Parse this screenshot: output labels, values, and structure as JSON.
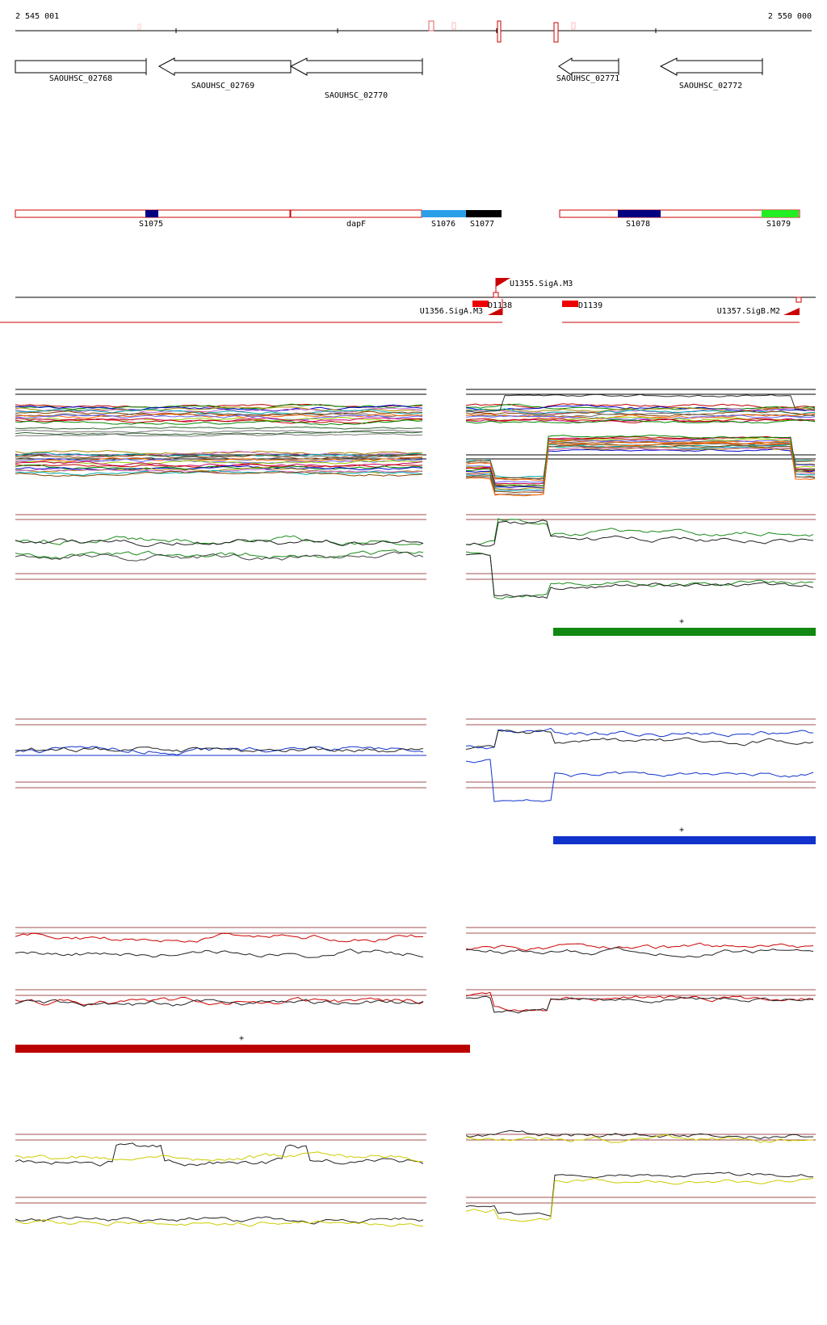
{
  "header": {
    "start_coord": "2 545 001",
    "end_coord": "2 550 000"
  },
  "genes": [
    {
      "id": "g1",
      "label": "SAOUHSC_02768"
    },
    {
      "id": "g2",
      "label": "SAOUHSC_02769"
    },
    {
      "id": "g3",
      "label": "SAOUHSC_02770"
    },
    {
      "id": "g4",
      "label": "SAOUHSC_02771"
    },
    {
      "id": "g5",
      "label": "SAOUHSC_02772"
    }
  ],
  "segments": [
    {
      "label": "S1075",
      "color": "#000080"
    },
    {
      "label": "dapF",
      "color": "#ffffff"
    },
    {
      "label": "S1076",
      "color": "#2a9fe8"
    },
    {
      "label": "S1077",
      "color": "#000000"
    },
    {
      "label": "S1078",
      "color": "#000080"
    },
    {
      "label": "S1079",
      "color": "#22ee22"
    }
  ],
  "promoters": [
    {
      "label": "U1355.SigA.M3"
    },
    {
      "label": "D1138"
    },
    {
      "label": "D1139"
    },
    {
      "label": "U1356.SigA.M3"
    },
    {
      "label": "U1357.SigB.M2"
    }
  ],
  "panels": [
    {
      "name": "all-conditions",
      "color": "#000000"
    },
    {
      "name": "green-condition",
      "color": "#1a8a1a",
      "marker": "+"
    },
    {
      "name": "blue-condition",
      "color": "#1133cc",
      "marker": "+"
    },
    {
      "name": "red-condition",
      "color": "#bb0000",
      "marker": "+"
    },
    {
      "name": "yellow-condition",
      "color": "#cccc00"
    }
  ]
}
